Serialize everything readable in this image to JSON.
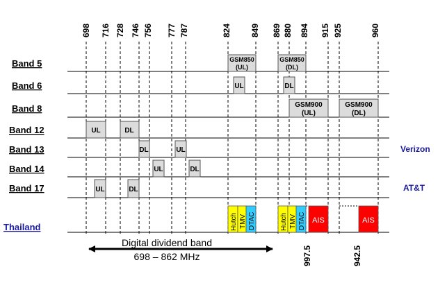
{
  "frequencies": [
    "698",
    "716",
    "728",
    "746",
    "756",
    "777",
    "787",
    "824",
    "849",
    "869",
    "880",
    "894",
    "915",
    "925",
    "960"
  ],
  "bands": [
    {
      "label": "Band 5"
    },
    {
      "label": "Band 6"
    },
    {
      "label": "Band 8"
    },
    {
      "label": "Band 12"
    },
    {
      "label": "Band 13"
    },
    {
      "label": "Band 14"
    },
    {
      "label": "Band 17"
    }
  ],
  "thailand_label": "Thailand",
  "carriers": {
    "band13": "Verizon",
    "band17": "AT&T"
  },
  "blocks": {
    "b5_ul_l1": "GSM850",
    "b5_ul_l2": "(UL)",
    "b5_dl_l1": "GSM850",
    "b5_dl_l2": "(DL)",
    "b6_ul": "UL",
    "b6_dl": "DL",
    "b8_ul_l1": "GSM900",
    "b8_ul_l2": "(UL)",
    "b8_dl_l1": "GSM900",
    "b8_dl_l2": "(DL)",
    "b12_ul": "UL",
    "b12_dl": "DL",
    "b13_dl": "DL",
    "b13_ul": "UL",
    "b14_ul": "UL",
    "b14_dl": "DL",
    "b17_ul": "UL",
    "b17_dl": "DL"
  },
  "thailand_ops": {
    "hutch": "Hutch",
    "tmv": "TMV",
    "dtac": "DTAC",
    "ais": "AIS"
  },
  "colors": {
    "hutch": "#ffff00",
    "tmv": "#ffff00",
    "dtac": "#33ccff",
    "ais": "#ff0000",
    "block": "#dcdcdc"
  },
  "annotations": {
    "dd_line1": "Digital dividend band",
    "dd_line2": "698 – 862 MHz",
    "v1": "997.5",
    "v2": "942.5"
  }
}
